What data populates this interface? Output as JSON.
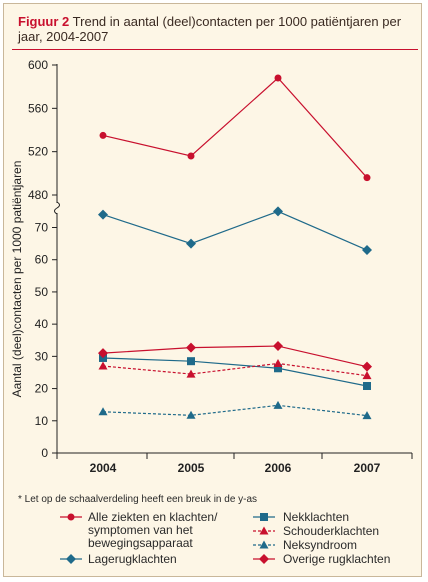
{
  "figure": {
    "label": "Figuur 2",
    "title": "Trend in aantal (deel)contacten per 1000 patiëntjaren per jaar, 2004-2007",
    "footnote": "* Let op de schaalverdeling heeft een breuk in de y-as"
  },
  "colors": {
    "red": "#c8102e",
    "blue": "#1f6a8a",
    "frame_bg": "#fdf6e6"
  },
  "chart_data": {
    "type": "line",
    "title": "Trend in aantal (deel)contacten per 1000 patiëntjaren per jaar, 2004-2007",
    "xlabel": "",
    "ylabel": "Aantal (deel)contacten per 1000 patiëntjaren",
    "categories": [
      "2004",
      "2005",
      "2006",
      "2007"
    ],
    "y_axis_break": true,
    "upper_segment": {
      "ylim": [
        480,
        600
      ],
      "ticks": [
        "480",
        "520",
        "560",
        "600"
      ]
    },
    "lower_segment": {
      "ylim": [
        0,
        75
      ],
      "ticks": [
        "0",
        "10",
        "20",
        "30",
        "40",
        "50",
        "60",
        "70"
      ]
    },
    "grid": false,
    "legend_position": "bottom",
    "series": [
      {
        "name": "Alle ziekten en klachten/ symptomen van het bewegingsapparaat",
        "segment": "upper",
        "color": "#c8102e",
        "marker": "circle",
        "dash": false,
        "values": [
          535,
          516,
          588,
          496
        ]
      },
      {
        "name": "Lagerugklachten",
        "segment": "lower",
        "color": "#1f6a8a",
        "marker": "diamond",
        "dash": false,
        "values": [
          74,
          65,
          75,
          63
        ]
      },
      {
        "name": "Nekklachten",
        "segment": "lower",
        "color": "#1f6a8a",
        "marker": "square",
        "dash": false,
        "values": [
          29.5,
          28.5,
          26.3,
          20.8
        ]
      },
      {
        "name": "Schouderklachten",
        "segment": "lower",
        "color": "#c8102e",
        "marker": "triangle",
        "dash": true,
        "values": [
          27,
          24.5,
          27.8,
          24
        ]
      },
      {
        "name": "Neksyndroom",
        "segment": "lower",
        "color": "#1f6a8a",
        "marker": "triangle",
        "dash": true,
        "values": [
          12.8,
          11.7,
          14.8,
          11.6
        ]
      },
      {
        "name": "Overige rugklachten",
        "segment": "lower",
        "color": "#c8102e",
        "marker": "diamond",
        "dash": false,
        "values": [
          31,
          32.7,
          33.2,
          26.8
        ]
      }
    ],
    "legend": [
      {
        "text": "Alle ziekten en klachten/",
        "lines": [
          "Alle ziekten en klachten/",
          "symptomen van het",
          "bewegingsapparaat"
        ]
      },
      {
        "text": "Nekklachten"
      },
      {
        "text": "Schouderklachten"
      },
      {
        "text": "Neksyndroom"
      },
      {
        "text": "Lagerugklachten"
      },
      {
        "text": "Overige rugklachten"
      }
    ]
  }
}
